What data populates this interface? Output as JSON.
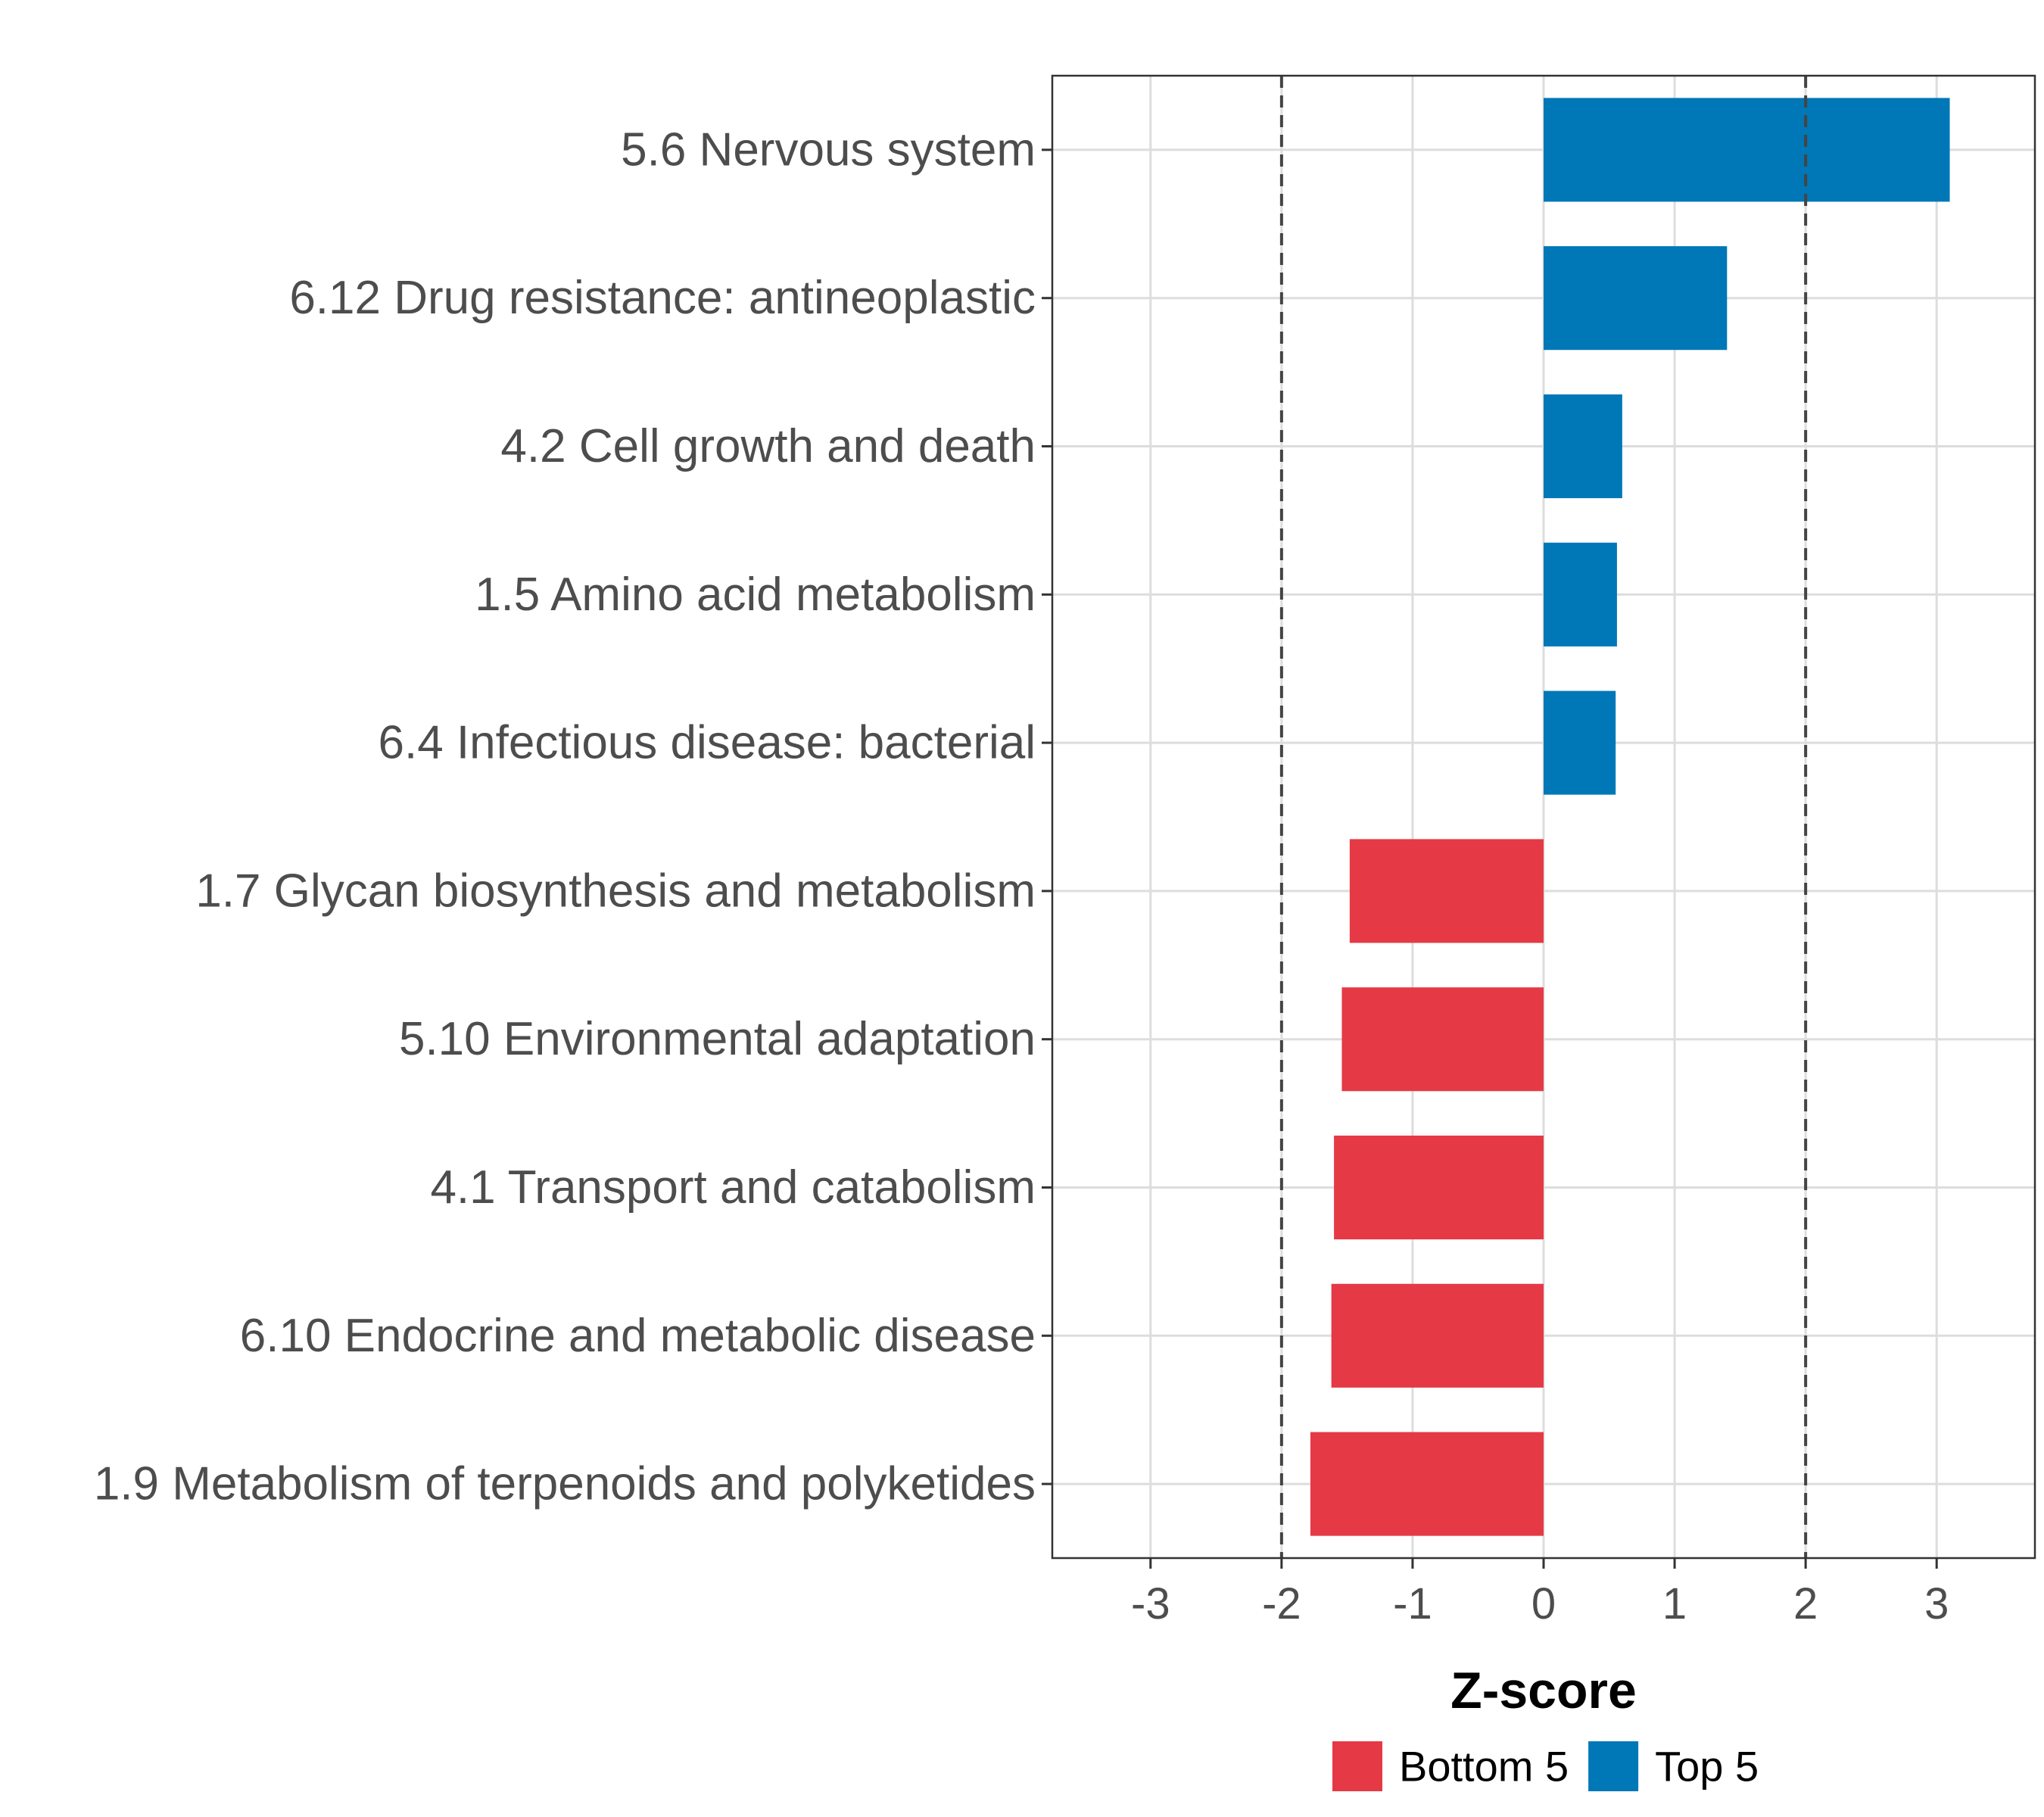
{
  "chart_data": {
    "type": "bar",
    "orientation": "horizontal",
    "title": "",
    "xlabel": "Z-score",
    "ylabel": "",
    "xlim": [
      -3.75,
      3.75
    ],
    "xticks": [
      -3,
      -2,
      -1,
      0,
      1,
      2,
      3
    ],
    "xtick_labels": [
      "-3",
      "-2",
      "-1",
      "0",
      "1",
      "2",
      "3"
    ],
    "reference_lines": [
      -2,
      2
    ],
    "grid": true,
    "categories": [
      "5.6 Nervous system",
      "6.12 Drug resistance: antineoplastic",
      "4.2 Cell growth and death",
      "1.5 Amino acid metabolism",
      "6.4 Infectious disease: bacterial",
      "1.7 Glycan biosynthesis and metabolism",
      "5.10 Environmental adaptation",
      "4.1 Transport and catabolism",
      "6.10 Endocrine and metabolic disease",
      "1.9 Metabolism of terpenoids and polyketides"
    ],
    "values": [
      3.1,
      1.4,
      0.6,
      0.56,
      0.55,
      -1.48,
      -1.54,
      -1.6,
      -1.62,
      -1.78
    ],
    "groups": [
      "Top 5",
      "Top 5",
      "Top 5",
      "Top 5",
      "Top 5",
      "Bottom 5",
      "Bottom 5",
      "Bottom 5",
      "Bottom 5",
      "Bottom 5"
    ],
    "legend": {
      "position": "bottom",
      "entries": [
        {
          "label": "Bottom 5",
          "color": "#E63946"
        },
        {
          "label": "Top 5",
          "color": "#0077B6"
        }
      ]
    }
  }
}
